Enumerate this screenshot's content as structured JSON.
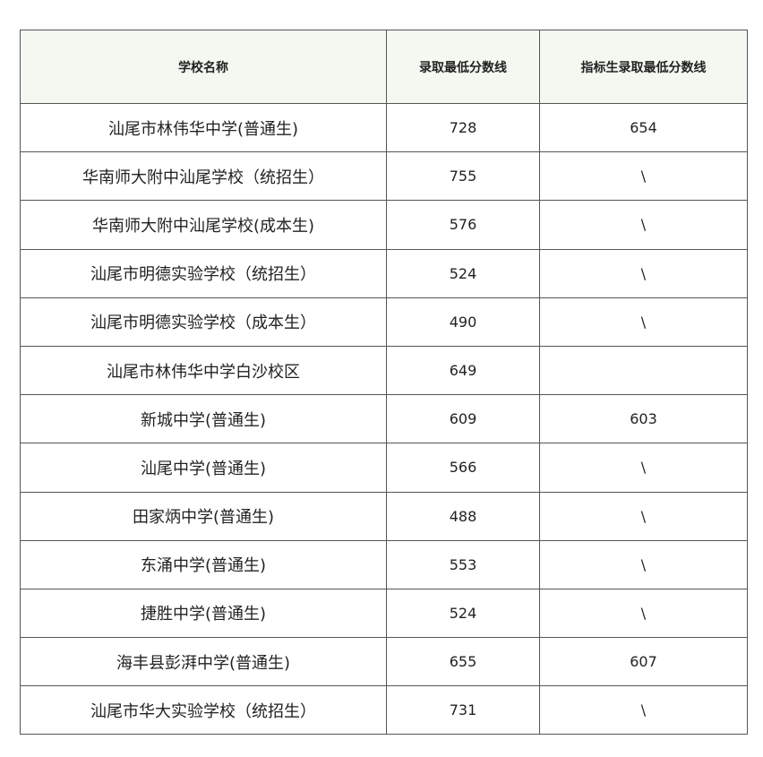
{
  "table": {
    "headers": [
      "学校名称",
      "录取最低分数线",
      "指标生录取最低分数线"
    ],
    "rows": [
      [
        "汕尾市林伟华中学(普通生)",
        "728",
        "654"
      ],
      [
        "华南师大附中汕尾学校（统招生）",
        "755",
        "\\"
      ],
      [
        "华南师大附中汕尾学校(成本生)",
        "576",
        "\\"
      ],
      [
        "汕尾市明德实验学校（统招生）",
        "524",
        "\\"
      ],
      [
        "汕尾市明德实验学校（成本生）",
        "490",
        "\\"
      ],
      [
        "汕尾市林伟华中学白沙校区",
        "649",
        ""
      ],
      [
        "新城中学(普通生)",
        "609",
        "603"
      ],
      [
        "汕尾中学(普通生)",
        "566",
        "\\"
      ],
      [
        "田家炳中学(普通生)",
        "488",
        "\\"
      ],
      [
        "东涌中学(普通生)",
        "553",
        "\\"
      ],
      [
        "捷胜中学(普通生)",
        "524",
        "\\"
      ],
      [
        "海丰县彭湃中学(普通生)",
        "655",
        "607"
      ],
      [
        "汕尾市华大实验学校（统招生）",
        "731",
        "\\"
      ]
    ]
  }
}
